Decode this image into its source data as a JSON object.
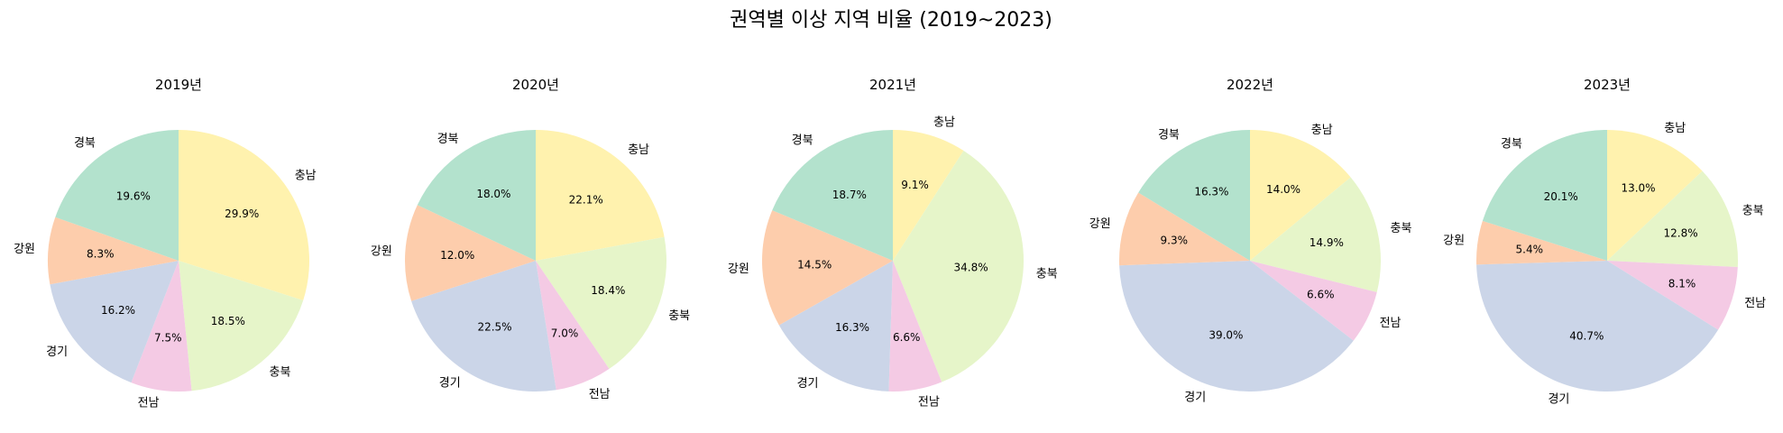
{
  "chart_data": {
    "type": "pie",
    "title": "권역별 이상 지역 비율 (2019~2023)",
    "start_angle_deg": 90,
    "direction": "clockwise",
    "colors": {
      "충남": "#fff2ae",
      "충북": "#e6f5c9",
      "전남": "#f4cae4",
      "경기": "#cbd5e8",
      "강원": "#fdcdac",
      "경북": "#b3e2cd"
    },
    "charts": [
      {
        "title": "2019년",
        "slices": [
          {
            "label": "충남",
            "value": 29.9,
            "pct": "29.9%"
          },
          {
            "label": "충북",
            "value": 18.5,
            "pct": "18.5%"
          },
          {
            "label": "전남",
            "value": 7.5,
            "pct": "7.5%"
          },
          {
            "label": "경기",
            "value": 16.2,
            "pct": "16.2%"
          },
          {
            "label": "강원",
            "value": 8.3,
            "pct": "8.3%"
          },
          {
            "label": "경북",
            "value": 19.6,
            "pct": "19.6%"
          }
        ]
      },
      {
        "title": "2020년",
        "slices": [
          {
            "label": "충남",
            "value": 22.1,
            "pct": "22.1%"
          },
          {
            "label": "충북",
            "value": 18.4,
            "pct": "18.4%"
          },
          {
            "label": "전남",
            "value": 7.0,
            "pct": "7.0%"
          },
          {
            "label": "경기",
            "value": 22.5,
            "pct": "22.5%"
          },
          {
            "label": "강원",
            "value": 12.0,
            "pct": "12.0%"
          },
          {
            "label": "경북",
            "value": 18.0,
            "pct": "18.0%"
          }
        ]
      },
      {
        "title": "2021년",
        "slices": [
          {
            "label": "충남",
            "value": 9.1,
            "pct": "9.1%"
          },
          {
            "label": "충북",
            "value": 34.8,
            "pct": "34.8%"
          },
          {
            "label": "전남",
            "value": 6.6,
            "pct": "6.6%"
          },
          {
            "label": "경기",
            "value": 16.3,
            "pct": "16.3%"
          },
          {
            "label": "강원",
            "value": 14.5,
            "pct": "14.5%"
          },
          {
            "label": "경북",
            "value": 18.7,
            "pct": "18.7%"
          }
        ]
      },
      {
        "title": "2022년",
        "slices": [
          {
            "label": "충남",
            "value": 14.0,
            "pct": "14.0%"
          },
          {
            "label": "충북",
            "value": 14.9,
            "pct": "14.9%"
          },
          {
            "label": "전남",
            "value": 6.6,
            "pct": "6.6%"
          },
          {
            "label": "경기",
            "value": 39.0,
            "pct": "39.0%"
          },
          {
            "label": "강원",
            "value": 9.3,
            "pct": "9.3%"
          },
          {
            "label": "경북",
            "value": 16.3,
            "pct": "16.3%"
          }
        ]
      },
      {
        "title": "2023년",
        "slices": [
          {
            "label": "충남",
            "value": 13.0,
            "pct": "13.0%"
          },
          {
            "label": "충북",
            "value": 12.8,
            "pct": "12.8%"
          },
          {
            "label": "전남",
            "value": 8.1,
            "pct": "8.1%"
          },
          {
            "label": "경기",
            "value": 40.7,
            "pct": "40.7%"
          },
          {
            "label": "강원",
            "value": 5.4,
            "pct": "5.4%"
          },
          {
            "label": "경북",
            "value": 20.1,
            "pct": "20.1%"
          }
        ]
      }
    ]
  }
}
